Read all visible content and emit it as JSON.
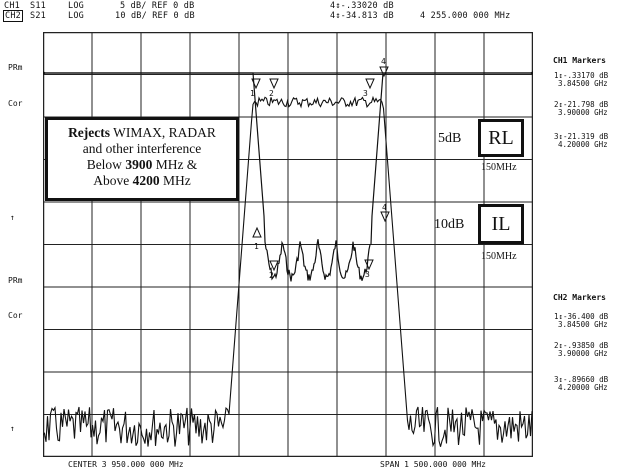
{
  "header": {
    "ch1_label": "CH1",
    "ch2_label": "CH2",
    "s11": "S11",
    "s21": "S21",
    "log1": "LOG",
    "log2": "LOG",
    "scale1": "5 dB/ REF 0 dB",
    "scale2": "10 dB/ REF 0 dB",
    "marker4_ch1": "4↕-.33020 dB",
    "marker4_ch2": "4↕-34.813 dB",
    "marker4_freq": "4 255.000 000 MHz"
  },
  "left_labels": {
    "prm1": "PRm",
    "cor1": "Cor",
    "arrow1": "↑",
    "prm2": "PRm",
    "cor2": "Cor",
    "arrow2": "↑"
  },
  "callout": {
    "bold1": "Rejects",
    "text1": " WIMAX, RADAR",
    "line2": "and other interference",
    "line3_pre": "Below ",
    "line3_bold": "3900",
    "line3_post": " MHz &",
    "line4_pre": "Above ",
    "line4_bold": "4200",
    "line4_post": " MHz"
  },
  "rl_box": {
    "value": "5dB",
    "label": "RL",
    "sub": "150MHz"
  },
  "il_box": {
    "value": "10dB",
    "label": "IL",
    "sub": "150MHz"
  },
  "ch1_markers": {
    "title": "CH1 Markers",
    "m1_val": "1↕-.33170 dB",
    "m1_freq": "3.84500 GHz",
    "m2_val": "2↕-21.798 dB",
    "m2_freq": "3.90000 GHz",
    "m3_val": "3↕-21.319 dB",
    "m3_freq": "4.20000 GHz"
  },
  "ch2_markers": {
    "title": "CH2 Markers",
    "m1_val": "1↕-36.400 dB",
    "m1_freq": "3.84500 GHz",
    "m2_val": "2↕-.93850 dB",
    "m2_freq": "3.90000 GHz",
    "m3_val": "3↕-.89660 dB",
    "m3_freq": "4.20000 GHz"
  },
  "footer": {
    "center": "CENTER 3 950.000 000 MHz",
    "span": "SPAN 1 500.000 000 MHz"
  },
  "marker_labels": [
    "1",
    "2",
    "3",
    "4"
  ]
}
